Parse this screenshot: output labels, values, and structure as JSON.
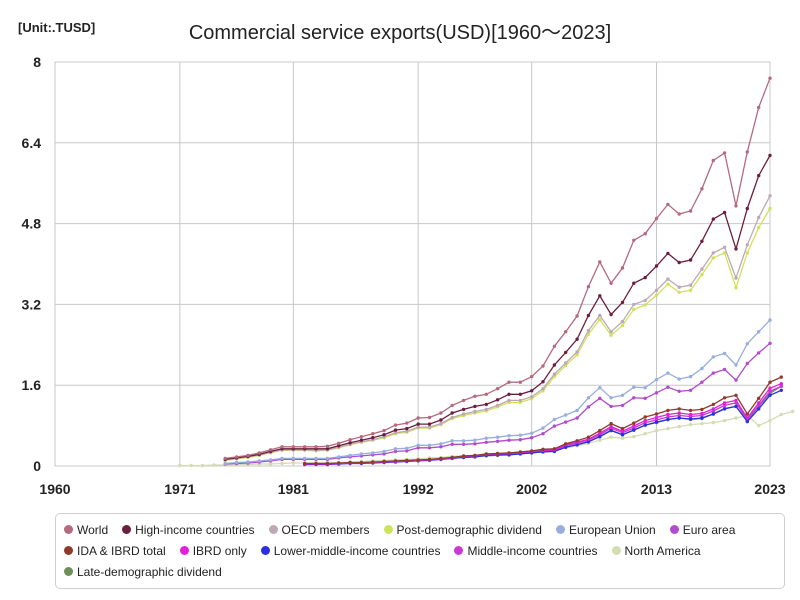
{
  "unit_label": "[Unit:.TUSD]",
  "chart_data": {
    "type": "line",
    "title": "Commercial service exports(USD)[1960～2023]",
    "xlabel": "",
    "ylabel": "",
    "xlim": [
      1960,
      2023
    ],
    "ylim": [
      0,
      8
    ],
    "x_ticks": [
      1960,
      1971,
      1981,
      1992,
      2002,
      2013,
      2023
    ],
    "y_ticks": [
      0,
      1.6,
      3.2,
      4.8,
      6.4,
      8
    ],
    "y_tick_labels": [
      "0",
      "1.6",
      "3.2",
      "4.8",
      "6.4",
      "8"
    ],
    "grid": true,
    "legend_position": "bottom",
    "series": [
      {
        "name": "World",
        "color": "#b56a7e",
        "start": 1975,
        "values": [
          0.15,
          0.18,
          0.21,
          0.26,
          0.32,
          0.38,
          0.38,
          0.38,
          0.38,
          0.39,
          0.45,
          0.52,
          0.58,
          0.64,
          0.7,
          0.81,
          0.85,
          0.95,
          0.96,
          1.05,
          1.2,
          1.3,
          1.38,
          1.42,
          1.53,
          1.66,
          1.66,
          1.77,
          1.98,
          2.37,
          2.66,
          2.97,
          3.55,
          4.04,
          3.62,
          3.92,
          4.47,
          4.6,
          4.9,
          5.18,
          4.99,
          5.05,
          5.49,
          6.05,
          6.2,
          5.15,
          6.22,
          7.1,
          7.68
        ]
      },
      {
        "name": "High-income countries",
        "color": "#6b1e3e",
        "start": 1975,
        "values": [
          0.13,
          0.16,
          0.19,
          0.23,
          0.29,
          0.34,
          0.34,
          0.34,
          0.34,
          0.34,
          0.4,
          0.46,
          0.51,
          0.56,
          0.62,
          0.71,
          0.74,
          0.83,
          0.83,
          0.91,
          1.05,
          1.12,
          1.18,
          1.22,
          1.31,
          1.42,
          1.42,
          1.49,
          1.67,
          2.0,
          2.25,
          2.51,
          2.98,
          3.37,
          3.0,
          3.24,
          3.62,
          3.73,
          3.96,
          4.21,
          4.03,
          4.08,
          4.45,
          4.89,
          5.02,
          4.3,
          5.1,
          5.75,
          6.15
        ]
      },
      {
        "name": "OECD members",
        "color": "#bfa8b6",
        "start": 1975,
        "values": [
          0.12,
          0.15,
          0.18,
          0.22,
          0.27,
          0.32,
          0.32,
          0.32,
          0.31,
          0.32,
          0.37,
          0.43,
          0.48,
          0.52,
          0.58,
          0.66,
          0.69,
          0.77,
          0.77,
          0.84,
          0.96,
          1.03,
          1.08,
          1.12,
          1.2,
          1.3,
          1.3,
          1.37,
          1.53,
          1.82,
          2.04,
          2.26,
          2.68,
          2.98,
          2.66,
          2.86,
          3.2,
          3.28,
          3.48,
          3.7,
          3.54,
          3.58,
          3.9,
          4.22,
          4.33,
          3.72,
          4.38,
          4.92,
          5.35
        ]
      },
      {
        "name": "Post-demographic dividend",
        "color": "#cfe35a",
        "start": 1975,
        "values": [
          0.11,
          0.14,
          0.17,
          0.21,
          0.26,
          0.31,
          0.31,
          0.31,
          0.3,
          0.31,
          0.36,
          0.42,
          0.47,
          0.51,
          0.56,
          0.64,
          0.67,
          0.75,
          0.75,
          0.82,
          0.94,
          1.0,
          1.05,
          1.09,
          1.17,
          1.26,
          1.26,
          1.33,
          1.49,
          1.77,
          1.99,
          2.2,
          2.61,
          2.9,
          2.59,
          2.78,
          3.1,
          3.19,
          3.38,
          3.6,
          3.44,
          3.48,
          3.79,
          4.12,
          4.22,
          3.53,
          4.22,
          4.72,
          5.1
        ]
      },
      {
        "name": "European Union",
        "color": "#98aede",
        "start": 1975,
        "values": [
          0.05,
          0.07,
          0.08,
          0.1,
          0.12,
          0.15,
          0.15,
          0.15,
          0.15,
          0.15,
          0.18,
          0.21,
          0.24,
          0.26,
          0.29,
          0.34,
          0.35,
          0.41,
          0.41,
          0.44,
          0.5,
          0.5,
          0.51,
          0.55,
          0.57,
          0.6,
          0.61,
          0.65,
          0.75,
          0.92,
          1.01,
          1.1,
          1.35,
          1.55,
          1.35,
          1.4,
          1.56,
          1.55,
          1.71,
          1.84,
          1.72,
          1.77,
          1.93,
          2.16,
          2.23,
          2.0,
          2.42,
          2.66,
          2.89
        ]
      },
      {
        "name": "Euro area",
        "color": "#b24bcc",
        "start": 1975,
        "values": [
          0.04,
          0.05,
          0.06,
          0.08,
          0.1,
          0.13,
          0.13,
          0.13,
          0.13,
          0.13,
          0.16,
          0.18,
          0.2,
          0.22,
          0.24,
          0.29,
          0.3,
          0.36,
          0.36,
          0.38,
          0.43,
          0.43,
          0.44,
          0.47,
          0.49,
          0.51,
          0.52,
          0.56,
          0.64,
          0.79,
          0.87,
          0.95,
          1.17,
          1.34,
          1.18,
          1.2,
          1.35,
          1.34,
          1.45,
          1.56,
          1.48,
          1.5,
          1.66,
          1.84,
          1.91,
          1.7,
          2.03,
          2.24,
          2.43
        ]
      },
      {
        "name": "IDA & IBRD total",
        "color": "#8e3b2e",
        "start": 1982,
        "values": [
          0.05,
          0.05,
          0.05,
          0.06,
          0.07,
          0.07,
          0.08,
          0.09,
          0.1,
          0.11,
          0.12,
          0.13,
          0.15,
          0.17,
          0.2,
          0.21,
          0.24,
          0.25,
          0.26,
          0.28,
          0.3,
          0.33,
          0.34,
          0.44,
          0.5,
          0.57,
          0.7,
          0.84,
          0.74,
          0.85,
          0.97,
          1.03,
          1.1,
          1.13,
          1.1,
          1.12,
          1.22,
          1.35,
          1.4,
          1.03,
          1.34,
          1.66,
          1.76
        ]
      },
      {
        "name": "IBRD only",
        "color": "#e021d9",
        "start": 1982,
        "values": [
          0.04,
          0.04,
          0.04,
          0.05,
          0.06,
          0.06,
          0.07,
          0.08,
          0.09,
          0.1,
          0.11,
          0.12,
          0.14,
          0.16,
          0.19,
          0.2,
          0.23,
          0.24,
          0.25,
          0.27,
          0.29,
          0.31,
          0.32,
          0.42,
          0.47,
          0.53,
          0.65,
          0.78,
          0.69,
          0.79,
          0.9,
          0.96,
          1.02,
          1.05,
          1.02,
          1.04,
          1.13,
          1.25,
          1.3,
          0.95,
          1.25,
          1.54,
          1.63
        ]
      },
      {
        "name": "Lower-middle-income countries",
        "color": "#2b2fe0",
        "start": 1982,
        "values": [
          0.03,
          0.03,
          0.03,
          0.04,
          0.05,
          0.05,
          0.06,
          0.07,
          0.08,
          0.09,
          0.1,
          0.11,
          0.13,
          0.15,
          0.17,
          0.18,
          0.21,
          0.22,
          0.22,
          0.24,
          0.26,
          0.28,
          0.29,
          0.37,
          0.42,
          0.48,
          0.58,
          0.7,
          0.62,
          0.71,
          0.81,
          0.87,
          0.92,
          0.95,
          0.93,
          0.95,
          1.03,
          1.13,
          1.18,
          0.88,
          1.13,
          1.4,
          1.5
        ]
      },
      {
        "name": "Middle-income countries",
        "color": "#c73ad4",
        "start": 1982,
        "values": [
          0.04,
          0.04,
          0.04,
          0.05,
          0.06,
          0.06,
          0.07,
          0.08,
          0.09,
          0.1,
          0.11,
          0.12,
          0.14,
          0.16,
          0.18,
          0.19,
          0.22,
          0.23,
          0.24,
          0.26,
          0.28,
          0.3,
          0.31,
          0.4,
          0.45,
          0.51,
          0.62,
          0.75,
          0.66,
          0.75,
          0.86,
          0.91,
          0.97,
          1.0,
          0.98,
          1.0,
          1.09,
          1.2,
          1.25,
          0.92,
          1.2,
          1.48,
          1.58
        ]
      },
      {
        "name": "North America",
        "color": "#d4dcb4",
        "start": 1971,
        "values": [
          0.01,
          0.01,
          0.01,
          0.02,
          0.02,
          0.03,
          0.03,
          0.04,
          0.04,
          0.05,
          0.06,
          0.06,
          0.07,
          0.07,
          0.07,
          0.08,
          0.09,
          0.1,
          0.11,
          0.12,
          0.13,
          0.14,
          0.16,
          0.17,
          0.19,
          0.2,
          0.21,
          0.23,
          0.24,
          0.25,
          0.26,
          0.28,
          0.3,
          0.33,
          0.36,
          0.4,
          0.45,
          0.51,
          0.57,
          0.55,
          0.58,
          0.64,
          0.7,
          0.74,
          0.78,
          0.82,
          0.84,
          0.86,
          0.9,
          0.95,
          1.0,
          0.8,
          0.9,
          1.02,
          1.08
        ]
      },
      {
        "name": "Late-demographic dividend",
        "color": "#6e8f5a",
        "start": 1982,
        "values": [
          0.04,
          0.04,
          0.04,
          0.05,
          0.06,
          0.06,
          0.07,
          0.08,
          0.09,
          0.1,
          0.11,
          0.12,
          0.13,
          0.15,
          0.17,
          0.18,
          0.2,
          0.21,
          0.22,
          0.24,
          0.26,
          0.28,
          0.29,
          0.37,
          0.42,
          0.48,
          0.59,
          0.71,
          0.62,
          0.71,
          0.81,
          0.86,
          0.92,
          0.95,
          0.92,
          0.94,
          1.03,
          1.14,
          1.18,
          0.9,
          1.18,
          1.44,
          1.58
        ]
      }
    ]
  }
}
